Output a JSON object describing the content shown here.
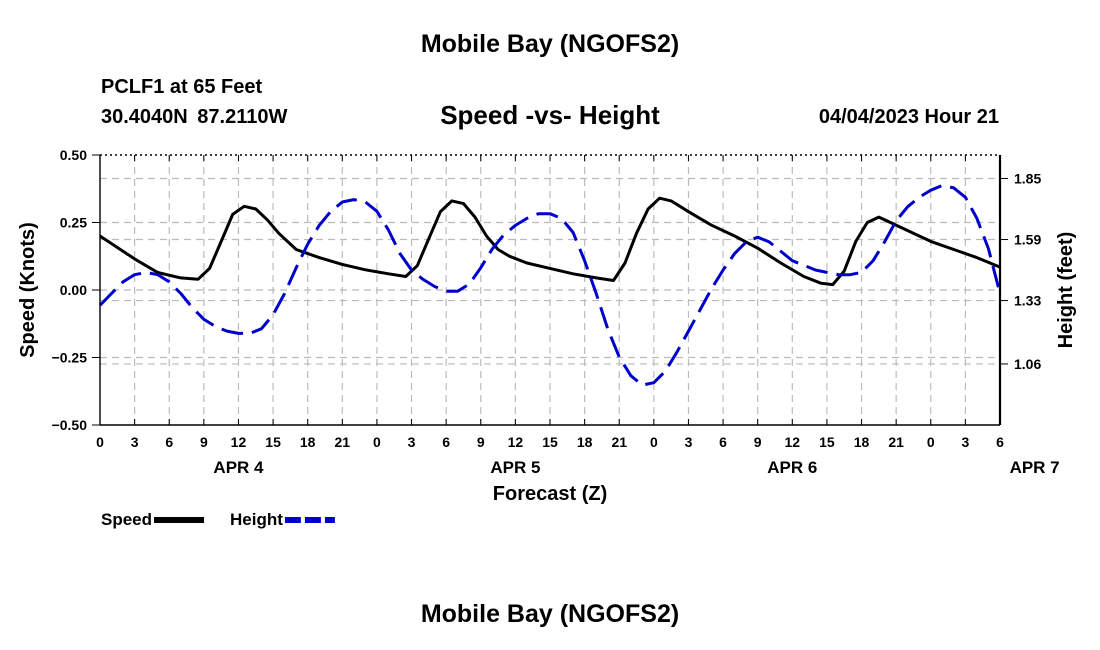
{
  "page": {
    "title_top": "Mobile Bay (NGOFS2)",
    "title_bottom": "Mobile Bay (NGOFS2)",
    "station": "PCLF1 at 65 Feet",
    "coords": "30.4040N  87.2110W",
    "subtitle": "Speed -vs- Height",
    "datetime": "04/04/2023 Hour 21"
  },
  "chart_data": {
    "type": "line",
    "xlabel": "Forecast (Z)",
    "ylabel": "Speed (Knots)",
    "y2label": "Height (feet)",
    "x_tick_labels": [
      "0",
      "3",
      "6",
      "9",
      "12",
      "15",
      "18",
      "21",
      "0",
      "3",
      "6",
      "9",
      "12",
      "15",
      "18",
      "21",
      "0",
      "3",
      "6",
      "9",
      "12",
      "15",
      "18",
      "21",
      "0",
      "3",
      "6"
    ],
    "day_labels": [
      {
        "label": "APR 4",
        "hour": 12
      },
      {
        "label": "APR 5",
        "hour": 36
      },
      {
        "label": "APR 6",
        "hour": 60
      },
      {
        "label": "APR 7",
        "hour": 81
      }
    ],
    "xlim": [
      0,
      78
    ],
    "ylim": [
      -0.5,
      0.5
    ],
    "y_ticks": [
      "0.50",
      "0.25",
      "0.00",
      "−0.25",
      "−0.50"
    ],
    "y2lim": [
      0.8,
      1.95
    ],
    "y2_ticks": [
      {
        "label": "1.85",
        "value": 1.85
      },
      {
        "label": "1.59",
        "value": 1.59
      },
      {
        "label": "1.33",
        "value": 1.33
      },
      {
        "label": "1.06",
        "value": 1.06
      }
    ],
    "series": [
      {
        "name": "Speed",
        "axis": "left",
        "color": "#000000",
        "style": "solid",
        "x": [
          0,
          3,
          5,
          7,
          8.5,
          9.5,
          10.5,
          11.5,
          12.5,
          13.5,
          14.5,
          15.5,
          17,
          19,
          21,
          23,
          25,
          26.5,
          27.5,
          28.5,
          29.5,
          30.5,
          31.5,
          32.5,
          33.5,
          34.5,
          35.5,
          37,
          39,
          41,
          43,
          44.5,
          45.5,
          46.5,
          47.5,
          48.5,
          49.5,
          51,
          53,
          55,
          57,
          59,
          61,
          62.5,
          63.5,
          64.5,
          65.5,
          66.5,
          67.5,
          68.5,
          70,
          72,
          74,
          76,
          78
        ],
        "values": [
          0.2,
          0.115,
          0.065,
          0.045,
          0.04,
          0.08,
          0.18,
          0.28,
          0.31,
          0.3,
          0.26,
          0.21,
          0.15,
          0.12,
          0.095,
          0.075,
          0.06,
          0.05,
          0.09,
          0.19,
          0.29,
          0.33,
          0.32,
          0.27,
          0.2,
          0.15,
          0.125,
          0.1,
          0.08,
          0.06,
          0.045,
          0.035,
          0.1,
          0.21,
          0.3,
          0.34,
          0.33,
          0.29,
          0.24,
          0.2,
          0.155,
          0.1,
          0.05,
          0.025,
          0.02,
          0.07,
          0.18,
          0.25,
          0.27,
          0.25,
          0.22,
          0.18,
          0.15,
          0.12,
          0.085
        ]
      },
      {
        "name": "Height",
        "axis": "right",
        "color": "#0000cc",
        "style": "dashed",
        "x": [
          0,
          1,
          2,
          3,
          4,
          5,
          6,
          7,
          8,
          9,
          10,
          11,
          12,
          13,
          14,
          15,
          16,
          17,
          18,
          19,
          20,
          21,
          22,
          23,
          24,
          25,
          26,
          27,
          28,
          29,
          30,
          31,
          32,
          33,
          34,
          35,
          36,
          37,
          38,
          39,
          40,
          41,
          42,
          43,
          44,
          45,
          46,
          47,
          48,
          49,
          50,
          51,
          52,
          53,
          54,
          55,
          56,
          57,
          58,
          59,
          60,
          61,
          62,
          63,
          64,
          65,
          66,
          67,
          68,
          69,
          70,
          71,
          72,
          73,
          74,
          75,
          76,
          77,
          78
        ],
        "values": [
          1.31,
          1.36,
          1.41,
          1.44,
          1.45,
          1.44,
          1.41,
          1.36,
          1.3,
          1.25,
          1.22,
          1.2,
          1.19,
          1.19,
          1.21,
          1.27,
          1.36,
          1.47,
          1.57,
          1.65,
          1.71,
          1.75,
          1.76,
          1.75,
          1.71,
          1.63,
          1.53,
          1.46,
          1.42,
          1.39,
          1.37,
          1.37,
          1.4,
          1.47,
          1.55,
          1.61,
          1.65,
          1.68,
          1.7,
          1.7,
          1.68,
          1.62,
          1.5,
          1.36,
          1.21,
          1.09,
          1.01,
          0.97,
          0.98,
          1.03,
          1.11,
          1.2,
          1.29,
          1.38,
          1.46,
          1.53,
          1.58,
          1.6,
          1.58,
          1.54,
          1.5,
          1.48,
          1.46,
          1.45,
          1.44,
          1.44,
          1.45,
          1.5,
          1.58,
          1.67,
          1.73,
          1.77,
          1.8,
          1.82,
          1.81,
          1.77,
          1.68,
          1.55,
          1.36
        ]
      }
    ],
    "legend": [
      {
        "label": "Speed",
        "color": "#000000",
        "style": "solid"
      },
      {
        "label": "Height",
        "color": "#0000cc",
        "style": "dashed"
      }
    ]
  }
}
